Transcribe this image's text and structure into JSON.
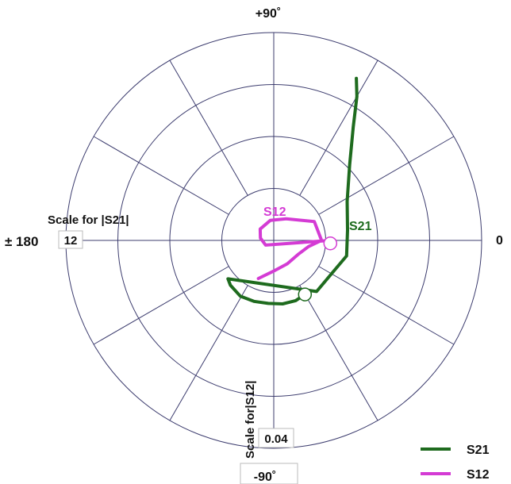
{
  "chart_data": {
    "type": "polar",
    "angle_labels": {
      "top": "+90˚",
      "bottom": "-90˚",
      "left": "± 180",
      "right": "0"
    },
    "scale_s21": {
      "label": "Scale for |S21|",
      "value": "12"
    },
    "scale_s12": {
      "label": "Scale for|S12|",
      "value": "0.04"
    },
    "rings": 4,
    "spokes_deg": [
      0,
      30,
      60,
      90,
      120,
      150
    ],
    "series": [
      {
        "name": "S21",
        "color": "#1e6b1e",
        "label": "S21",
        "magnitude_max": 12,
        "points": [
          {
            "angle": -60,
            "mag": 3.6
          },
          {
            "angle": -70,
            "mag": 3.7
          },
          {
            "angle": -82,
            "mag": 3.7
          },
          {
            "angle": -95,
            "mag": 3.65
          },
          {
            "angle": -108,
            "mag": 3.7
          },
          {
            "angle": -121,
            "mag": 3.75
          },
          {
            "angle": -134,
            "mag": 3.6
          },
          {
            "angle": -140,
            "mag": 3.45
          },
          {
            "angle": -50,
            "mag": 3.85
          },
          {
            "angle": -30,
            "mag": 3.85
          },
          {
            "angle": -12,
            "mag": 4.3
          },
          {
            "angle": 8,
            "mag": 4.3
          },
          {
            "angle": 28,
            "mag": 4.8
          },
          {
            "angle": 45,
            "mag": 6.2
          },
          {
            "angle": 55,
            "mag": 8.0
          },
          {
            "angle": 60,
            "mag": 9.6
          },
          {
            "angle": 63,
            "mag": 10.5
          }
        ],
        "marker": {
          "angle": -60,
          "mag": 3.6
        }
      },
      {
        "name": "S12",
        "color": "#d43bd4",
        "label": "S12",
        "magnitude_max": 0.04,
        "points": [
          {
            "angle": -112,
            "mag": 0.0079
          },
          {
            "angle": -90,
            "mag": 0.0059
          },
          {
            "angle": -60,
            "mag": 0.0052
          },
          {
            "angle": -30,
            "mag": 0.0054
          },
          {
            "angle": -10,
            "mag": 0.0068
          },
          {
            "angle": 0,
            "mag": 0.0092
          },
          {
            "angle": 25,
            "mag": 0.0086
          },
          {
            "angle": 60,
            "mag": 0.0048
          },
          {
            "angle": 100,
            "mag": 0.0039
          },
          {
            "angle": 140,
            "mag": 0.0034
          },
          {
            "angle": 170,
            "mag": 0.0026
          },
          {
            "angle": -150,
            "mag": 0.0018
          },
          {
            "angle": 0,
            "mag": 0.0108
          },
          {
            "angle": -4,
            "mag": 0.0108
          }
        ],
        "marker": {
          "angle": -3,
          "mag": 0.0109
        }
      }
    ],
    "legend": [
      {
        "label": "S21",
        "color": "#1e6b1e"
      },
      {
        "label": "S12",
        "color": "#d43bd4"
      }
    ],
    "legend_position": "bottom-right"
  }
}
